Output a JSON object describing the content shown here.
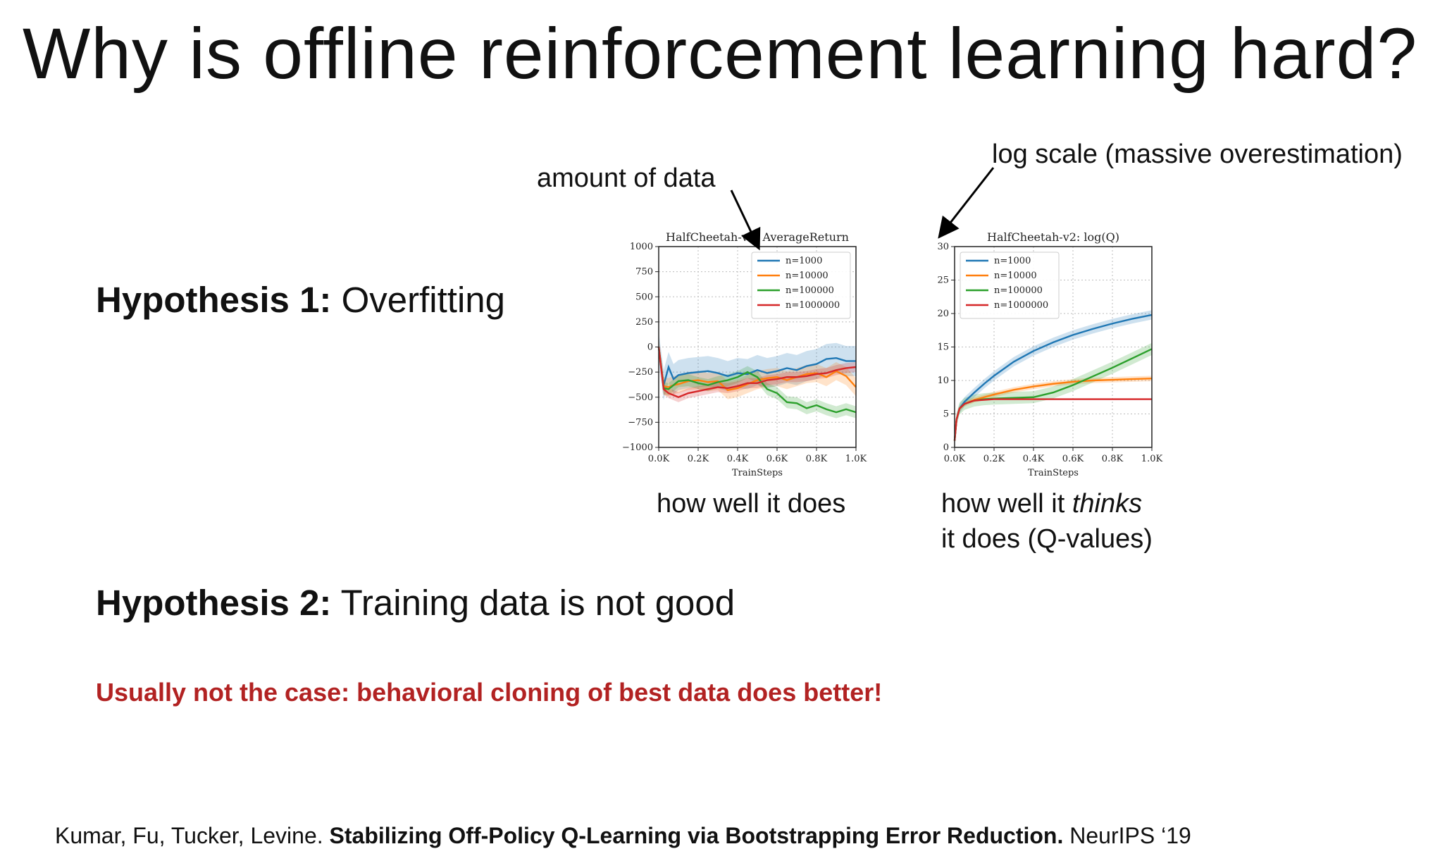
{
  "slide": {
    "title": "Why is offline reinforcement learning hard?",
    "hypothesis1": {
      "label": "Hypothesis 1:",
      "text": "Overfitting"
    },
    "hypothesis2": {
      "label": "Hypothesis 2:",
      "text": "Training data is not good"
    },
    "note": "Usually not the case: behavioral cloning of best data does better!",
    "annotation_data": "amount of data",
    "annotation_log": "log scale (massive overestimation)",
    "caption1": "how well it does",
    "caption2": {
      "before": "how well it ",
      "italic": "thinks",
      "line2": "it does (Q-values)"
    },
    "citation": {
      "authors": "Kumar, Fu, Tucker, Levine. ",
      "paper": "Stabilizing Off-Policy Q-Learning via Bootstrapping Error Reduction.",
      "venue": " NeurIPS ‘19"
    },
    "colors": {
      "red_note": "#b22222"
    }
  },
  "chart_data": [
    {
      "type": "line",
      "title": "HalfCheetah-v2: AverageReturn",
      "xlabel": "TrainSteps",
      "ylabel": "",
      "xlim": [
        0,
        1000
      ],
      "ylim": [
        -1000,
        1000
      ],
      "xticks": [
        0,
        200,
        400,
        600,
        800,
        1000
      ],
      "xtick_labels": [
        "0.0K",
        "0.2K",
        "0.4K",
        "0.6K",
        "0.8K",
        "1.0K"
      ],
      "yticks": [
        -1000,
        -750,
        -500,
        -250,
        0,
        250,
        500,
        750,
        1000
      ],
      "ytick_labels": [
        "−1000",
        "−750",
        "−500",
        "−250",
        "0",
        "250",
        "500",
        "750",
        "1000"
      ],
      "grid": true,
      "legend": "top-right",
      "x": [
        0,
        25,
        50,
        75,
        100,
        150,
        200,
        250,
        300,
        350,
        400,
        450,
        500,
        550,
        600,
        650,
        700,
        750,
        800,
        850,
        900,
        950,
        1000
      ],
      "series": [
        {
          "name": "n=1000",
          "color": "#1f77b4",
          "band": 150,
          "values": [
            0,
            -380,
            -200,
            -320,
            -280,
            -260,
            -250,
            -240,
            -260,
            -290,
            -260,
            -270,
            -230,
            -260,
            -240,
            -210,
            -230,
            -190,
            -170,
            -120,
            -110,
            -140,
            -140
          ]
        },
        {
          "name": "n=10000",
          "color": "#ff7f0e",
          "band": 90,
          "values": [
            0,
            -390,
            -400,
            -380,
            -370,
            -340,
            -330,
            -350,
            -340,
            -430,
            -410,
            -370,
            -330,
            -310,
            -300,
            -330,
            -300,
            -270,
            -260,
            -300,
            -240,
            -290,
            -400
          ]
        },
        {
          "name": "n=100000",
          "color": "#2ca02c",
          "band": 60,
          "values": [
            0,
            -410,
            -420,
            -380,
            -340,
            -330,
            -360,
            -380,
            -350,
            -330,
            -300,
            -250,
            -300,
            -420,
            -460,
            -550,
            -560,
            -610,
            -580,
            -620,
            -650,
            -620,
            -650
          ]
        },
        {
          "name": "n=1000000",
          "color": "#d62728",
          "band": 50,
          "values": [
            0,
            -420,
            -460,
            -480,
            -500,
            -460,
            -440,
            -420,
            -400,
            -410,
            -390,
            -360,
            -360,
            -330,
            -320,
            -300,
            -300,
            -290,
            -270,
            -260,
            -230,
            -210,
            -200
          ]
        }
      ]
    },
    {
      "type": "line",
      "title": "HalfCheetah-v2: log(Q)",
      "xlabel": "TrainSteps",
      "ylabel": "",
      "xlim": [
        0,
        1000
      ],
      "ylim": [
        0,
        30
      ],
      "xticks": [
        0,
        200,
        400,
        600,
        800,
        1000
      ],
      "xtick_labels": [
        "0.0K",
        "0.2K",
        "0.4K",
        "0.6K",
        "0.8K",
        "1.0K"
      ],
      "yticks": [
        0,
        5,
        10,
        15,
        20,
        25,
        30
      ],
      "ytick_labels": [
        "0",
        "5",
        "10",
        "15",
        "20",
        "25",
        "30"
      ],
      "grid": true,
      "legend": "top-left",
      "x": [
        0,
        10,
        25,
        50,
        100,
        150,
        200,
        300,
        400,
        500,
        600,
        700,
        800,
        900,
        1000
      ],
      "series": [
        {
          "name": "n=1000",
          "color": "#1f77b4",
          "band": 0.7,
          "values": [
            1.0,
            4.2,
            5.8,
            6.8,
            8.2,
            9.5,
            10.7,
            12.8,
            14.4,
            15.7,
            16.8,
            17.7,
            18.5,
            19.2,
            19.8
          ]
        },
        {
          "name": "n=10000",
          "color": "#ff7f0e",
          "band": 0.4,
          "values": [
            1.0,
            4.2,
            5.8,
            6.5,
            7.1,
            7.5,
            7.9,
            8.6,
            9.1,
            9.5,
            9.8,
            10.0,
            10.1,
            10.2,
            10.3
          ]
        },
        {
          "name": "n=100000",
          "color": "#2ca02c",
          "band": 0.9,
          "values": [
            1.0,
            4.2,
            5.8,
            6.5,
            7.0,
            7.2,
            7.3,
            7.4,
            7.5,
            8.2,
            9.3,
            10.6,
            11.9,
            13.3,
            14.7
          ]
        },
        {
          "name": "n=1000000",
          "color": "#d62728",
          "band": 0.1,
          "values": [
            1.0,
            4.2,
            5.8,
            6.5,
            7.0,
            7.1,
            7.2,
            7.2,
            7.2,
            7.2,
            7.2,
            7.2,
            7.2,
            7.2,
            7.2
          ]
        }
      ]
    }
  ]
}
